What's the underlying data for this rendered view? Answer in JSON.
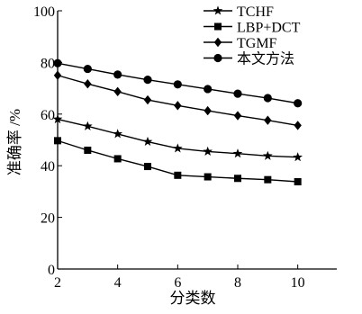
{
  "chart_data": {
    "type": "line",
    "xlabel": "分类数",
    "ylabel": "准确率 /%",
    "xlim": [
      2,
      11.3
    ],
    "ylim": [
      0,
      100
    ],
    "xticks": [
      "2",
      "4",
      "6",
      "8",
      "10"
    ],
    "yticks": [
      "0",
      "20",
      "40",
      "60",
      "80",
      "100"
    ],
    "grid": false,
    "legend_position": "top-right",
    "x": [
      2,
      3,
      4,
      5,
      6,
      7,
      8,
      9,
      10
    ],
    "series": [
      {
        "name": "TCHF",
        "marker": "star",
        "values": [
          58,
          55.3,
          52.3,
          49.3,
          46.7,
          45.5,
          44.7,
          43.8,
          43.3
        ]
      },
      {
        "name": "LBP+DCT",
        "marker": "square",
        "values": [
          49.7,
          46,
          42.7,
          39.7,
          36.3,
          35.7,
          35.1,
          34.6,
          33.8
        ]
      },
      {
        "name": "TGMF",
        "marker": "diamond",
        "values": [
          75,
          71.7,
          68.7,
          65.5,
          63.3,
          61.3,
          59.4,
          57.6,
          55.6
        ]
      },
      {
        "name": "本文方法",
        "marker": "circle",
        "values": [
          79.7,
          77.5,
          75.3,
          73.3,
          71.5,
          69.7,
          67.9,
          66.2,
          64.2
        ]
      }
    ]
  }
}
